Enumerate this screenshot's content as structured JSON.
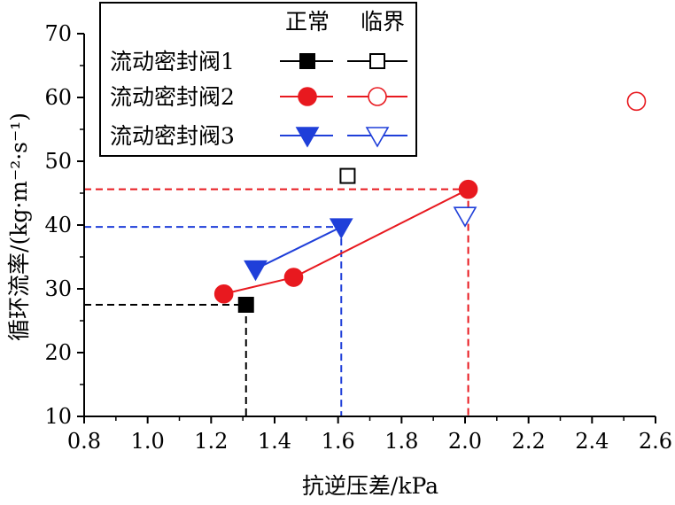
{
  "chart_data": {
    "type": "scatter",
    "title": "",
    "xlabel": "抗逆压差/kPa",
    "ylabel": "循环流率/(kg·m⁻²·s⁻¹)",
    "xlim": [
      0.8,
      2.6
    ],
    "ylim": [
      10,
      70
    ],
    "x_ticks": [
      "0.8",
      "1.0",
      "1.2",
      "1.4",
      "1.6",
      "1.8",
      "2.0",
      "2.2",
      "2.4",
      "2.6"
    ],
    "y_ticks": [
      "10",
      "20",
      "30",
      "40",
      "50",
      "60",
      "70"
    ],
    "legend": {
      "position": "top-left",
      "header_normal": "正常",
      "header_critical": "临界"
    },
    "series": [
      {
        "name": "流动密封阀1",
        "color": "#000000",
        "marker": "square",
        "normal": [
          [
            1.31,
            27.5
          ]
        ],
        "critical": [
          [
            1.63,
            47.7
          ]
        ],
        "guide_point": [
          1.31,
          27.5
        ]
      },
      {
        "name": "流动密封阀2",
        "color": "#e8191f",
        "marker": "circle",
        "normal": [
          [
            1.24,
            29.2
          ],
          [
            1.46,
            31.8
          ],
          [
            2.01,
            45.6
          ]
        ],
        "critical": [
          [
            2.54,
            59.4
          ]
        ],
        "guide_point": [
          2.01,
          45.6
        ]
      },
      {
        "name": "流动密封阀3",
        "color": "#1f3fd9",
        "marker": "triangle-down",
        "normal": [
          [
            1.34,
            33.1
          ],
          [
            1.61,
            39.7
          ]
        ],
        "critical": [
          [
            2.0,
            41.5
          ]
        ],
        "guide_point": [
          1.61,
          39.7
        ]
      }
    ]
  }
}
